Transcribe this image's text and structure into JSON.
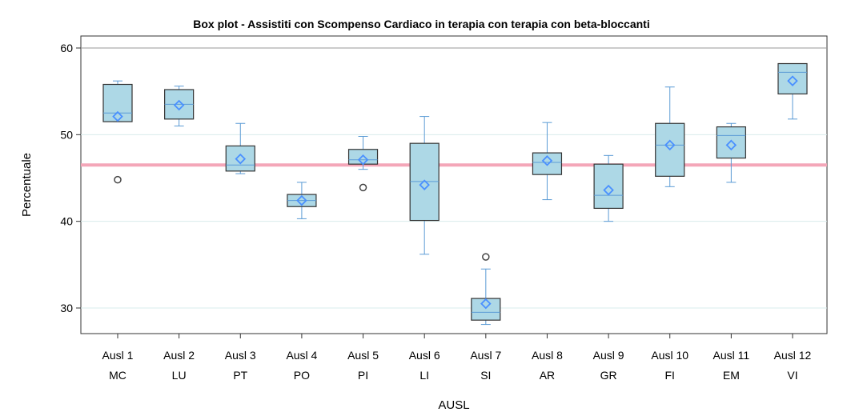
{
  "chart_data": {
    "type": "boxplot",
    "title": "Box plot - Assistiti con Scompenso Cardiaco in terapia con terapia con beta-bloccanti",
    "xlabel": "AUSL",
    "ylabel": "Percentuale",
    "ylim": [
      27,
      62
    ],
    "yticks": [
      30,
      40,
      50,
      60
    ],
    "reference_line": {
      "value": 46.5,
      "color": "#f4a6b8"
    },
    "colors": {
      "box_fill": "#add8e6",
      "box_stroke": "#333333",
      "whisker": "#5b9bd5",
      "mean_marker": "#4a90ff",
      "gridline": "#d8ecec",
      "top_grid": "#999999"
    },
    "categories": [
      {
        "line1": "Ausl 1",
        "line2": "MC",
        "min": 51.5,
        "q1": 51.5,
        "median": 52.5,
        "q3": 55.8,
        "max": 56.2,
        "mean": 52.1,
        "outliers": [
          44.8
        ]
      },
      {
        "line1": "Ausl 2",
        "line2": "LU",
        "min": 51.0,
        "q1": 51.8,
        "median": 53.5,
        "q3": 55.2,
        "max": 55.6,
        "mean": 53.4,
        "outliers": []
      },
      {
        "line1": "Ausl 3",
        "line2": "PT",
        "min": 45.5,
        "q1": 45.8,
        "median": 46.5,
        "q3": 48.7,
        "max": 51.3,
        "mean": 47.2,
        "outliers": []
      },
      {
        "line1": "Ausl 4",
        "line2": "PO",
        "min": 40.3,
        "q1": 41.7,
        "median": 42.4,
        "q3": 43.1,
        "max": 44.5,
        "mean": 42.4,
        "outliers": []
      },
      {
        "line1": "Ausl 5",
        "line2": "PI",
        "min": 46.0,
        "q1": 46.6,
        "median": 47.1,
        "q3": 48.3,
        "max": 49.8,
        "mean": 47.1,
        "outliers": [
          43.9
        ]
      },
      {
        "line1": "Ausl 6",
        "line2": "LI",
        "min": 36.2,
        "q1": 40.1,
        "median": 44.6,
        "q3": 49.0,
        "max": 52.1,
        "mean": 44.2,
        "outliers": []
      },
      {
        "line1": "Ausl 7",
        "line2": "SI",
        "min": 28.1,
        "q1": 28.6,
        "median": 29.5,
        "q3": 31.1,
        "max": 34.5,
        "mean": 30.5,
        "outliers": [
          35.9
        ]
      },
      {
        "line1": "Ausl 8",
        "line2": "AR",
        "min": 42.5,
        "q1": 45.4,
        "median": 46.8,
        "q3": 47.9,
        "max": 51.4,
        "mean": 47.0,
        "outliers": []
      },
      {
        "line1": "Ausl 9",
        "line2": "GR",
        "min": 40.0,
        "q1": 41.5,
        "median": 43.0,
        "q3": 46.6,
        "max": 47.6,
        "mean": 43.6,
        "outliers": []
      },
      {
        "line1": "Ausl 10",
        "line2": "FI",
        "min": 44.0,
        "q1": 45.2,
        "median": 48.8,
        "q3": 51.3,
        "max": 55.5,
        "mean": 48.8,
        "outliers": []
      },
      {
        "line1": "Ausl 11",
        "line2": "EM",
        "min": 44.5,
        "q1": 47.3,
        "median": 49.9,
        "q3": 50.9,
        "max": 51.3,
        "mean": 48.8,
        "outliers": []
      },
      {
        "line1": "Ausl 12",
        "line2": "VI",
        "min": 51.8,
        "q1": 54.7,
        "median": 57.2,
        "q3": 58.2,
        "max": 58.2,
        "mean": 56.2,
        "outliers": []
      }
    ]
  }
}
